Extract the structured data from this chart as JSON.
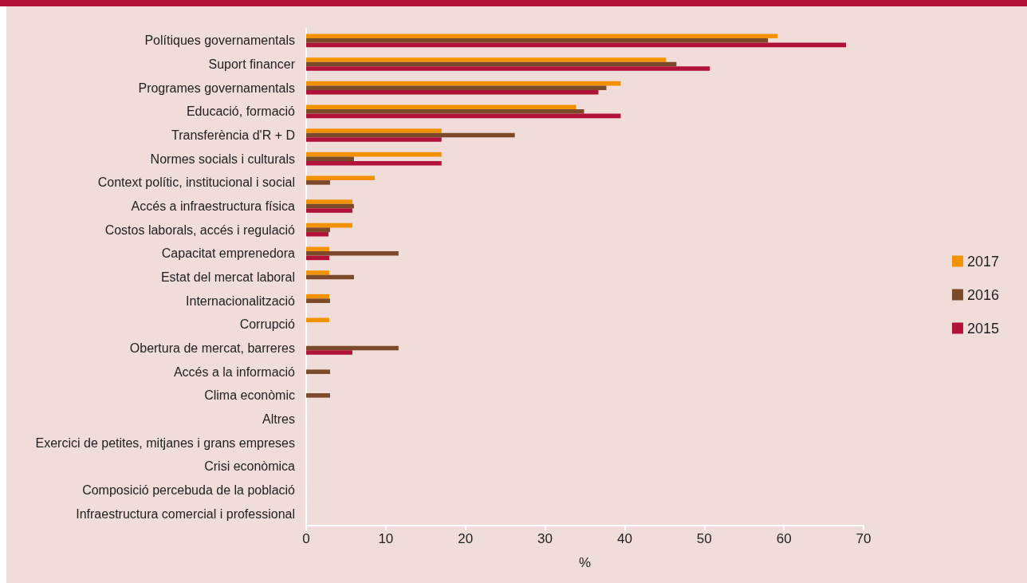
{
  "chart_data": {
    "type": "bar",
    "orientation": "horizontal",
    "xlabel": "%",
    "categories": [
      "Polítiques governamentals",
      "Suport financer",
      "Programes governamentals",
      "Educació, formació",
      "Transferència d'R + D",
      "Normes socials i culturals",
      "Context polític, institucional i social",
      "Accés a infraestructura física",
      "Costos laborals, accés i regulació",
      "Capacitat emprenedora",
      "Estat del mercat laboral",
      "Internacionalització",
      "Corrupció",
      "Obertura de mercat, barreres",
      "Accés a la informació",
      "Clima econòmic",
      "Altres",
      "Exercici de petites, mitjanes i grans empreses",
      "Crisi econòmica",
      "Composició percebuda de la població",
      "Infraestructura comercial i professional"
    ],
    "series": [
      {
        "name": "2017",
        "color": "#f39200",
        "values": [
          59.2,
          45.2,
          39.5,
          33.9,
          17,
          17,
          8.6,
          5.8,
          5.8,
          2.9,
          2.9,
          2.9,
          2.9,
          null,
          null,
          null,
          null,
          null,
          null,
          null,
          null
        ]
      },
      {
        "name": "2016",
        "color": "#7b4a2a",
        "values": [
          58,
          46.5,
          37.7,
          34.9,
          26.2,
          6,
          3,
          6,
          3,
          11.6,
          6,
          3,
          null,
          11.6,
          3,
          3,
          null,
          null,
          null,
          null,
          null
        ]
      },
      {
        "name": "2015",
        "color": "#b0123a",
        "values": [
          67.8,
          50.7,
          36.7,
          39.5,
          17,
          17,
          null,
          5.8,
          2.8,
          2.9,
          null,
          null,
          null,
          5.8,
          null,
          null,
          null,
          null,
          null,
          null,
          null
        ]
      }
    ],
    "xlim": [
      0,
      70
    ],
    "xticks": [
      0,
      10,
      20,
      30,
      40,
      50,
      60,
      70
    ],
    "grid": false,
    "legend": "right"
  }
}
